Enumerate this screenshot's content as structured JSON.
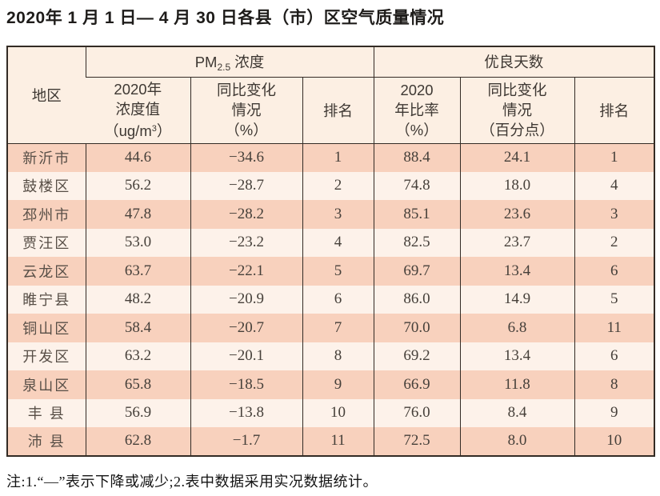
{
  "title": "2020年 1 月 1 日— 4 月 30 日各县（市）区空气质量情况",
  "table": {
    "header": {
      "region": "地区",
      "pm25_group": {
        "prefix": "PM",
        "sub": "2.5",
        "suffix": " 浓度"
      },
      "good_days_group": "优良天数",
      "pm25_value": {
        "line1": "2020年",
        "line2": "浓度值",
        "unit_prefix": "（ug/m",
        "unit_sup": "3",
        "unit_suffix": "）"
      },
      "pm25_change": "同比变化\n情况\n（%）",
      "pm25_rank": "排名",
      "good_rate": "2020\n年比率\n（%）",
      "good_change": "同比变化\n情况\n（百分点）",
      "good_rank": "排名"
    },
    "rows": [
      {
        "region": "新沂市",
        "pm25_value": "44.6",
        "pm25_change": "−34.6",
        "pm25_rank": "1",
        "good_rate": "88.4",
        "good_change": "24.1",
        "good_rank": "1"
      },
      {
        "region": "鼓楼区",
        "pm25_value": "56.2",
        "pm25_change": "−28.7",
        "pm25_rank": "2",
        "good_rate": "74.8",
        "good_change": "18.0",
        "good_rank": "4"
      },
      {
        "region": "邳州市",
        "pm25_value": "47.8",
        "pm25_change": "−28.2",
        "pm25_rank": "3",
        "good_rate": "85.1",
        "good_change": "23.6",
        "good_rank": "3"
      },
      {
        "region": "贾汪区",
        "pm25_value": "53.0",
        "pm25_change": "−23.2",
        "pm25_rank": "4",
        "good_rate": "82.5",
        "good_change": "23.7",
        "good_rank": "2"
      },
      {
        "region": "云龙区",
        "pm25_value": "63.7",
        "pm25_change": "−22.1",
        "pm25_rank": "5",
        "good_rate": "69.7",
        "good_change": "13.4",
        "good_rank": "6"
      },
      {
        "region": "睢宁县",
        "pm25_value": "48.2",
        "pm25_change": "−20.9",
        "pm25_rank": "6",
        "good_rate": "86.0",
        "good_change": "14.9",
        "good_rank": "5"
      },
      {
        "region": "铜山区",
        "pm25_value": "58.4",
        "pm25_change": "−20.7",
        "pm25_rank": "7",
        "good_rate": "70.0",
        "good_change": "6.8",
        "good_rank": "11"
      },
      {
        "region": "开发区",
        "pm25_value": "63.2",
        "pm25_change": "−20.1",
        "pm25_rank": "8",
        "good_rate": "69.2",
        "good_change": "13.4",
        "good_rank": "6"
      },
      {
        "region": "泉山区",
        "pm25_value": "65.8",
        "pm25_change": "−18.5",
        "pm25_rank": "9",
        "good_rate": "66.9",
        "good_change": "11.8",
        "good_rank": "8"
      },
      {
        "region": "丰 县",
        "pm25_value": "56.9",
        "pm25_change": "−13.8",
        "pm25_rank": "10",
        "good_rate": "76.0",
        "good_change": "8.4",
        "good_rank": "9"
      },
      {
        "region": "沛 县",
        "pm25_value": "62.8",
        "pm25_change": "−1.7",
        "pm25_rank": "11",
        "good_rate": "72.5",
        "good_change": "8.0",
        "good_rank": "10"
      }
    ]
  },
  "note": "注:1.“—”表示下降或减少;2.表中数据采用实况数据统计。",
  "colors": {
    "header_bg": "#fcefe3",
    "row_odd_bg": "#f8d1bd",
    "row_even_bg": "#fdf2ea",
    "border": "#332b25"
  }
}
